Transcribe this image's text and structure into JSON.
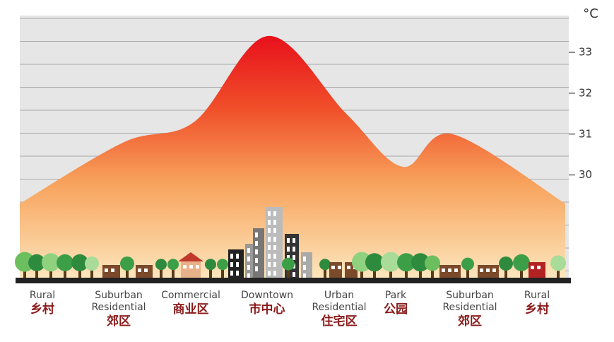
{
  "chart_data": {
    "type": "area",
    "y_label": "°C",
    "categories": [
      "Rural",
      "Suburban Residential",
      "Commercial",
      "Downtown",
      "Urban Residential",
      "Park",
      "Suburban Residential",
      "Rural"
    ],
    "categories_zh": [
      "乡村",
      "郊区",
      "商业区",
      "市中心",
      "住宅区",
      "公园",
      "郊区",
      "乡村"
    ],
    "values": [
      29.3,
      30.8,
      31.3,
      33.4,
      31.5,
      30.2,
      31.0,
      29.3
    ],
    "ylim": [
      27.4,
      33.9
    ],
    "yticks": [
      30,
      31,
      32,
      33
    ]
  }
}
